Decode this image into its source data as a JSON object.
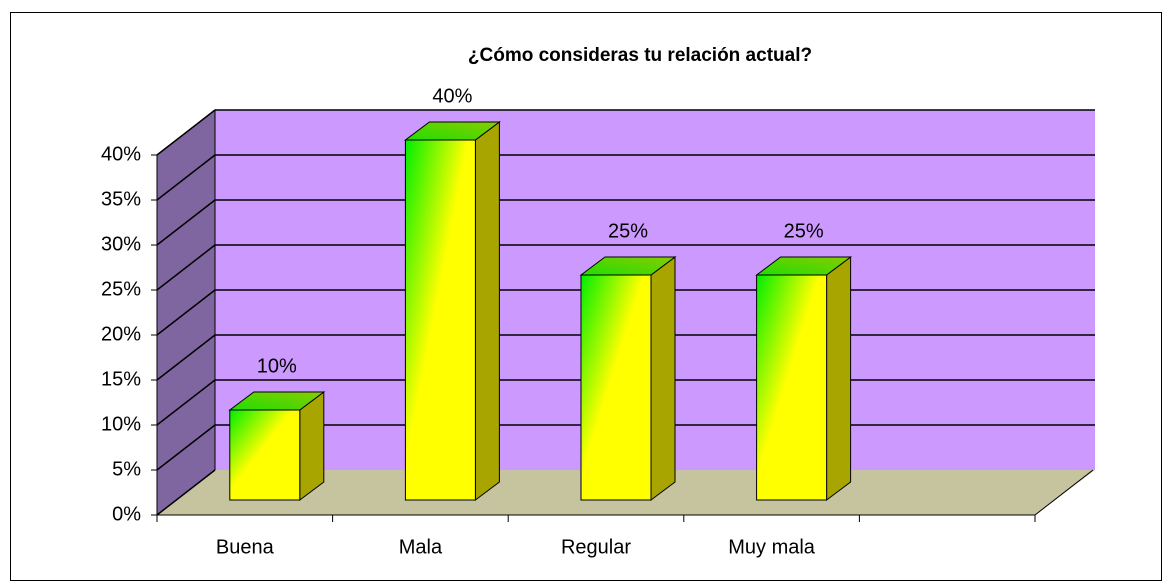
{
  "chart_data": {
    "type": "bar3d",
    "title": "¿Cómo consideras tu relación actual?",
    "categories": [
      "Buena",
      "Mala",
      "Regular",
      "Muy mala",
      null
    ],
    "values": [
      10,
      40,
      25,
      25,
      null
    ],
    "value_labels": [
      "10%",
      "40%",
      "25%",
      "25%",
      null
    ],
    "ylim": [
      0,
      40
    ],
    "yticks": [
      {
        "value": 0,
        "label": "0%"
      },
      {
        "value": 5,
        "label": "5%"
      },
      {
        "value": 10,
        "label": "10%"
      },
      {
        "value": 15,
        "label": "15%"
      },
      {
        "value": 20,
        "label": "20%"
      },
      {
        "value": 25,
        "label": "25%"
      },
      {
        "value": 30,
        "label": "30%"
      },
      {
        "value": 35,
        "label": "35%"
      },
      {
        "value": 40,
        "label": "40%"
      }
    ],
    "grid": true
  }
}
